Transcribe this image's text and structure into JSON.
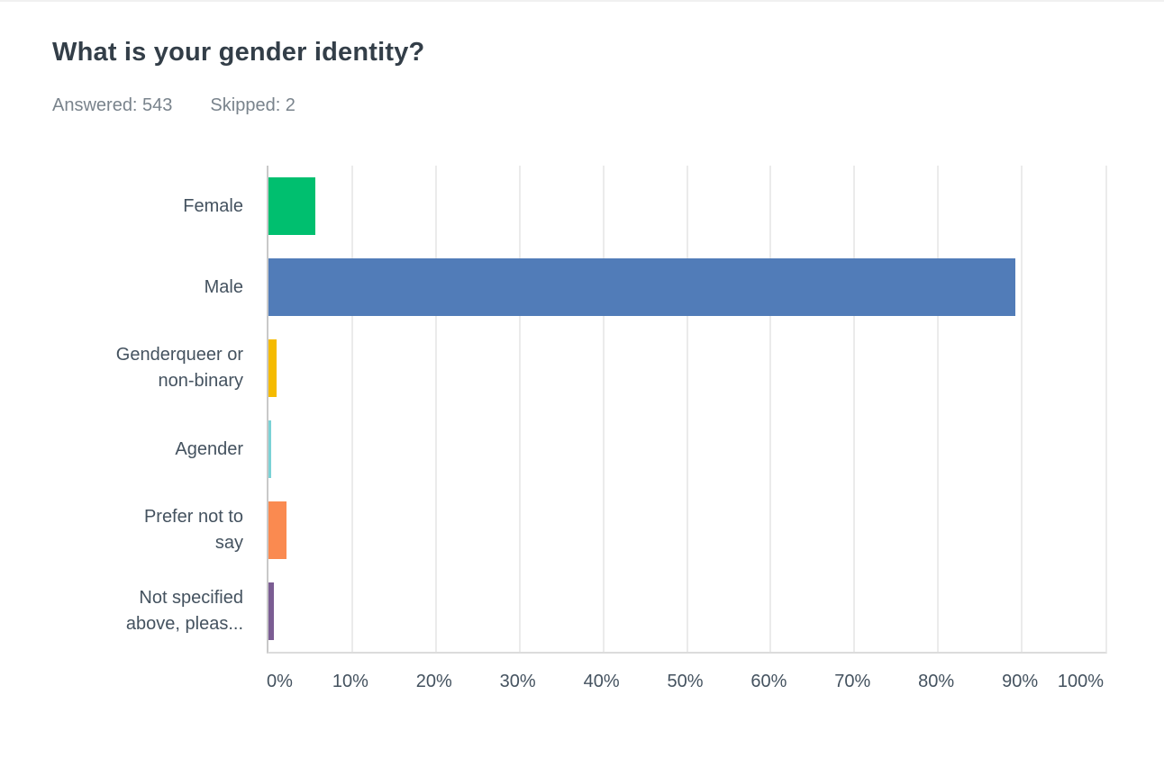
{
  "header": {
    "title": "What is your gender identity?",
    "answered": "Answered: 543",
    "skipped": "Skipped: 2"
  },
  "colors": {
    "title_text": "#333E48",
    "label_text": "#44525F",
    "meta_text": "#79838C",
    "gridline": "#EBEBEB",
    "axis_line": "#C9C9C9",
    "baseline": "#DCDCDC",
    "page_top_border": "#F0F0F0"
  },
  "chart_data": {
    "type": "bar",
    "orientation": "horizontal",
    "title": "What is your gender identity?",
    "categories": [
      "Female",
      "Male",
      "Genderqueer or non-binary",
      "Agender",
      "Prefer not to say",
      "Not specified above, pleas..."
    ],
    "category_label_lines": [
      [
        "Female"
      ],
      [
        "Male"
      ],
      [
        "Genderqueer or",
        "non-binary"
      ],
      [
        "Agender"
      ],
      [
        "Prefer not to",
        "say"
      ],
      [
        "Not specified",
        "above, pleas..."
      ]
    ],
    "values": [
      5.6,
      89.2,
      1.0,
      0.3,
      2.2,
      0.6
    ],
    "unit": "%",
    "bar_colors": [
      "#00BF6F",
      "#517CB8",
      "#F5BB00",
      "#7BD2D6",
      "#FA8A50",
      "#7B5D93"
    ],
    "xlabel": "",
    "ylabel": "",
    "xlim": [
      0,
      100
    ],
    "x_tick_step": 10,
    "x_tick_labels": [
      "0%",
      "10%",
      "20%",
      "30%",
      "40%",
      "50%",
      "60%",
      "70%",
      "80%",
      "90%",
      "100%"
    ],
    "grid": "vertical",
    "legend": "none"
  }
}
